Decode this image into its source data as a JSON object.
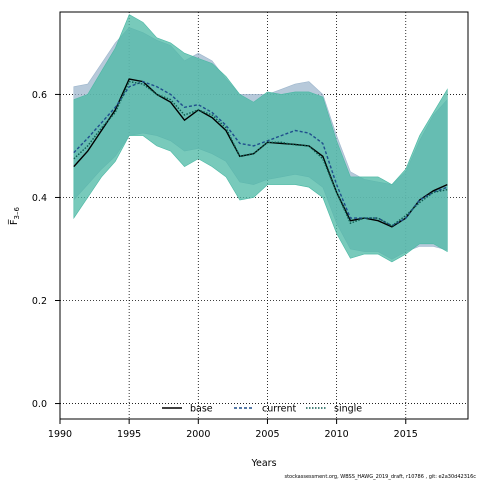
{
  "chart_data": {
    "type": "line",
    "xlabel": "Years",
    "ylabel": "F̅",
    "ylabel_subscript": "3–6",
    "xlim": [
      1990,
      2019.5
    ],
    "ylim": [
      -0.03,
      0.76
    ],
    "xticks": [
      1990,
      1995,
      2000,
      2005,
      2010,
      2015
    ],
    "yticks": [
      0.0,
      0.2,
      0.4,
      0.6
    ],
    "ytick_labels": [
      "0.0",
      "0.2",
      "0.4",
      "0.6"
    ],
    "grid": "dotted at major ticks",
    "legend_position": "bottom-center",
    "x": [
      1991,
      1992,
      1993,
      1994,
      1995,
      1996,
      1997,
      1998,
      1999,
      2000,
      2001,
      2002,
      2003,
      2004,
      2005,
      2006,
      2007,
      2008,
      2009,
      2010,
      2011,
      2012,
      2013,
      2014,
      2015,
      2016,
      2017,
      2018
    ],
    "series": [
      {
        "name": "base",
        "color": "#000000",
        "dash": "solid",
        "values": [
          0.46,
          0.49,
          0.53,
          0.57,
          0.63,
          0.625,
          0.6,
          0.585,
          0.55,
          0.57,
          0.555,
          0.53,
          0.48,
          0.485,
          0.507,
          0.505,
          0.503,
          0.5,
          0.48,
          0.41,
          0.355,
          0.36,
          0.355,
          0.343,
          0.36,
          0.395,
          0.413,
          0.425
        ],
        "band_upper": [
          0.615,
          0.62,
          0.66,
          0.7,
          0.73,
          0.72,
          0.705,
          0.695,
          0.665,
          0.68,
          0.665,
          0.63,
          0.6,
          0.6,
          0.6,
          0.61,
          0.62,
          0.625,
          0.6,
          0.52,
          0.45,
          0.435,
          0.43,
          0.425,
          0.45,
          0.51,
          0.56,
          0.59
        ],
        "band_lower": [
          0.395,
          0.425,
          0.455,
          0.48,
          0.52,
          0.525,
          0.52,
          0.51,
          0.49,
          0.495,
          0.485,
          0.47,
          0.43,
          0.425,
          0.435,
          0.44,
          0.445,
          0.44,
          0.42,
          0.35,
          0.3,
          0.295,
          0.295,
          0.28,
          0.295,
          0.305,
          0.305,
          0.298
        ],
        "band_color": "#9fb7cd"
      },
      {
        "name": "current",
        "color": "#1f4e8c",
        "dash": "dashed",
        "values": [
          0.487,
          0.515,
          0.545,
          0.575,
          0.615,
          0.625,
          0.615,
          0.6,
          0.575,
          0.58,
          0.565,
          0.54,
          0.505,
          0.5,
          0.51,
          0.52,
          0.53,
          0.525,
          0.505,
          0.425,
          0.36,
          0.36,
          0.36,
          0.345,
          0.36,
          0.395,
          0.41,
          0.42
        ]
      },
      {
        "name": "single",
        "color": "#0f5c50",
        "dash": "dotted",
        "values": [
          0.475,
          0.5,
          0.535,
          0.565,
          0.625,
          0.62,
          0.6,
          0.59,
          0.56,
          0.57,
          0.56,
          0.535,
          0.48,
          0.485,
          0.507,
          0.507,
          0.502,
          0.5,
          0.475,
          0.41,
          0.35,
          0.36,
          0.36,
          0.345,
          0.365,
          0.39,
          0.41,
          0.415
        ],
        "band_upper": [
          0.59,
          0.6,
          0.645,
          0.69,
          0.755,
          0.74,
          0.71,
          0.7,
          0.68,
          0.67,
          0.66,
          0.635,
          0.6,
          0.585,
          0.605,
          0.6,
          0.605,
          0.605,
          0.595,
          0.51,
          0.44,
          0.44,
          0.44,
          0.425,
          0.455,
          0.52,
          0.565,
          0.61
        ],
        "band_lower": [
          0.36,
          0.4,
          0.44,
          0.47,
          0.52,
          0.52,
          0.5,
          0.49,
          0.46,
          0.475,
          0.46,
          0.44,
          0.395,
          0.4,
          0.425,
          0.425,
          0.425,
          0.42,
          0.4,
          0.33,
          0.282,
          0.29,
          0.29,
          0.275,
          0.29,
          0.31,
          0.31,
          0.295
        ],
        "band_color": "#4bb8a4"
      }
    ],
    "footnote": "stockassessment.org,  WBSS_HAWG_2019_draft,  r10786 ,  git: e2a30d42316c"
  }
}
